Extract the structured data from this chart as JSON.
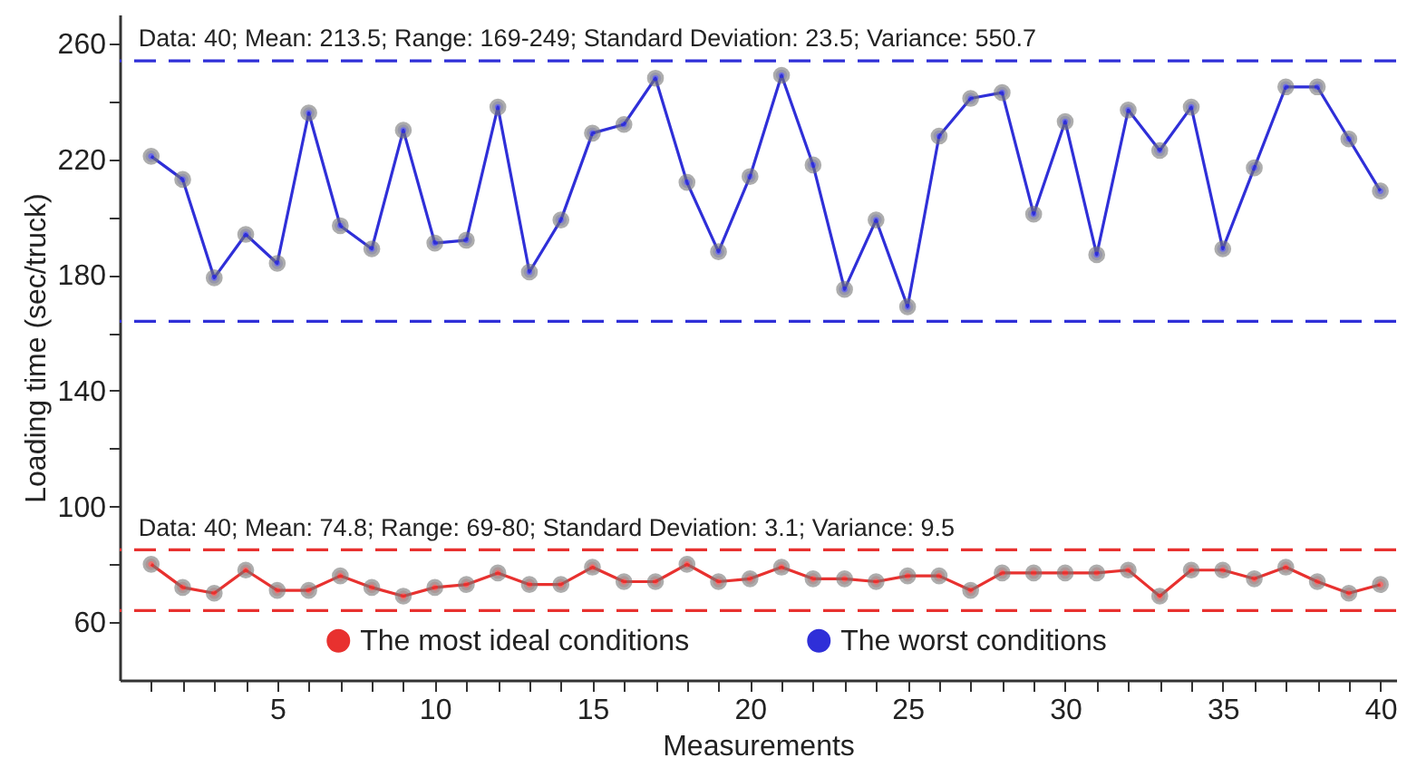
{
  "chart_data": {
    "type": "line",
    "xlabel": "Measurements",
    "ylabel": "Loading time (sec/truck)",
    "x": [
      1,
      2,
      3,
      4,
      5,
      6,
      7,
      8,
      9,
      10,
      11,
      12,
      13,
      14,
      15,
      16,
      17,
      18,
      19,
      20,
      21,
      22,
      23,
      24,
      25,
      26,
      27,
      28,
      29,
      30,
      31,
      32,
      33,
      34,
      35,
      36,
      37,
      38,
      39,
      40
    ],
    "series": [
      {
        "name": "The most ideal conditions",
        "color": "#e8312f",
        "values": [
          80,
          72,
          70,
          78,
          71,
          71,
          76,
          72,
          69,
          72,
          73,
          77,
          73,
          73,
          79,
          74,
          74,
          80,
          74,
          75,
          79,
          75,
          75,
          74,
          76,
          76,
          71,
          77,
          77,
          77,
          77,
          78,
          69,
          78,
          78,
          75,
          79,
          74,
          70,
          73
        ]
      },
      {
        "name": "The worst conditions",
        "color": "#2f2fd8",
        "values": [
          221,
          213,
          179,
          194,
          184,
          236,
          197,
          189,
          230,
          191,
          192,
          238,
          181,
          199,
          229,
          232,
          248,
          212,
          188,
          214,
          249,
          218,
          175,
          199,
          169,
          228,
          241,
          243,
          201,
          233,
          187,
          237,
          223,
          238,
          189,
          217,
          245,
          245,
          227,
          209
        ]
      }
    ],
    "xlim": [
      0,
      40.5
    ],
    "xticks": [
      {
        "value": 1,
        "label": null
      },
      {
        "value": 2,
        "label": null
      },
      {
        "value": 3,
        "label": null
      },
      {
        "value": 4,
        "label": null
      },
      5,
      {
        "value": 6,
        "label": null
      },
      {
        "value": 7,
        "label": null
      },
      {
        "value": 8,
        "label": null
      },
      {
        "value": 9,
        "label": null
      },
      10,
      {
        "value": 11,
        "label": null
      },
      {
        "value": 12,
        "label": null
      },
      {
        "value": 13,
        "label": null
      },
      {
        "value": 14,
        "label": null
      },
      15,
      {
        "value": 16,
        "label": null
      },
      {
        "value": 17,
        "label": null
      },
      {
        "value": 18,
        "label": null
      },
      {
        "value": 19,
        "label": null
      },
      20,
      {
        "value": 21,
        "label": null
      },
      {
        "value": 22,
        "label": null
      },
      {
        "value": 23,
        "label": null
      },
      {
        "value": 24,
        "label": null
      },
      25,
      {
        "value": 26,
        "label": null
      },
      {
        "value": 27,
        "label": null
      },
      {
        "value": 28,
        "label": null
      },
      {
        "value": 29,
        "label": null
      },
      30,
      {
        "value": 31,
        "label": null
      },
      {
        "value": 32,
        "label": null
      },
      {
        "value": 33,
        "label": null
      },
      {
        "value": 34,
        "label": null
      },
      35,
      {
        "value": 36,
        "label": null
      },
      {
        "value": 37,
        "label": null
      },
      {
        "value": 38,
        "label": null
      },
      {
        "value": 39,
        "label": null
      },
      40
    ],
    "ylim": [
      40,
      270
    ],
    "yticks": [
      60,
      {
        "value": 80,
        "label": null
      },
      100,
      {
        "value": 120,
        "label": null
      },
      140,
      {
        "value": 160,
        "label": null
      },
      180,
      {
        "value": 200,
        "label": null
      },
      220,
      {
        "value": 240,
        "label": null
      },
      260
    ],
    "ref_lines": [
      {
        "axis": "y",
        "value": 254,
        "color": "#2f2fd8",
        "line_style": "dashed"
      },
      {
        "axis": "y",
        "value": 164,
        "color": "#2f2fd8",
        "line_style": "dashed"
      },
      {
        "axis": "y",
        "value": 85,
        "color": "#e8312f",
        "line_style": "dashed"
      },
      {
        "axis": "y",
        "value": 64,
        "color": "#e8312f",
        "line_style": "dashed"
      }
    ],
    "annotations": [
      {
        "text": "Data: 40; Mean: 213.5; Range: 169-249; Standard Deviation: 23.5; Variance: 550.7",
        "x": 0.6,
        "y": 257
      },
      {
        "text": "Data: 40; Mean: 74.8; Range: 69-80; Standard Deviation: 3.1; Variance: 9.5",
        "x": 0.6,
        "y": 88
      }
    ],
    "grid": false,
    "legend": "bottom",
    "marker": "circle",
    "line_style": "solid"
  }
}
